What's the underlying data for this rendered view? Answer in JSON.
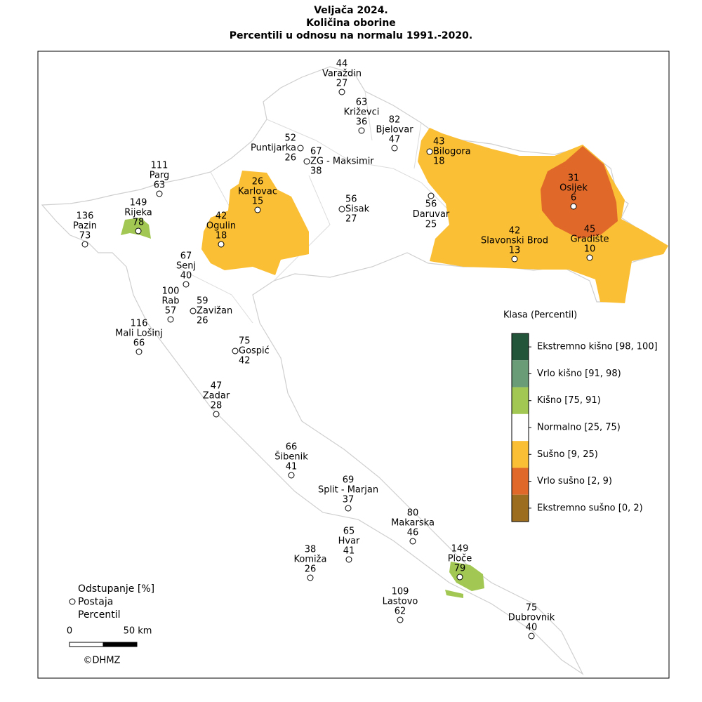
{
  "title": [
    "Veljača 2024.",
    "Količina oborine",
    "Percentili u odnosu na normalu 1991.-2020."
  ],
  "stations": [
    {
      "name": "Varaždin",
      "deviation": 44,
      "percentile": 27
    },
    {
      "name": "Križevci",
      "deviation": 63,
      "percentile": 36
    },
    {
      "name": "Bjelovar",
      "deviation": 82,
      "percentile": 47
    },
    {
      "name": "Puntijarka",
      "deviation": 52,
      "percentile": 26
    },
    {
      "name": "ZG - Maksimir",
      "deviation": 67,
      "percentile": 38
    },
    {
      "name": "Bilogora",
      "deviation": 43,
      "percentile": 18
    },
    {
      "name": "Parg",
      "deviation": 111,
      "percentile": 63
    },
    {
      "name": "Karlovac",
      "deviation": 26,
      "percentile": 15
    },
    {
      "name": "Sisak",
      "deviation": 56,
      "percentile": 27
    },
    {
      "name": "Daruvar",
      "deviation": 56,
      "percentile": 25
    },
    {
      "name": "Osijek",
      "deviation": 31,
      "percentile": 6
    },
    {
      "name": "Rijeka",
      "deviation": 149,
      "percentile": 78
    },
    {
      "name": "Pazin",
      "deviation": 136,
      "percentile": 73
    },
    {
      "name": "Ogulin",
      "deviation": 42,
      "percentile": 18
    },
    {
      "name": "Slavonski Brod",
      "deviation": 42,
      "percentile": 13
    },
    {
      "name": "Gradište",
      "deviation": 45,
      "percentile": 10
    },
    {
      "name": "Senj",
      "deviation": 67,
      "percentile": 40
    },
    {
      "name": "Rab",
      "deviation": 100,
      "percentile": 57
    },
    {
      "name": "Zavižan",
      "deviation": 59,
      "percentile": 26
    },
    {
      "name": "Mali Lošinj",
      "deviation": 116,
      "percentile": 66
    },
    {
      "name": "Gospić",
      "deviation": 75,
      "percentile": 42
    },
    {
      "name": "Zadar",
      "deviation": 47,
      "percentile": 28
    },
    {
      "name": "Šibenik",
      "deviation": 66,
      "percentile": 41
    },
    {
      "name": "Split - Marjan",
      "deviation": 69,
      "percentile": 37
    },
    {
      "name": "Makarska",
      "deviation": 80,
      "percentile": 46
    },
    {
      "name": "Hvar",
      "deviation": 65,
      "percentile": 41
    },
    {
      "name": "Komiža",
      "deviation": 38,
      "percentile": 26
    },
    {
      "name": "Ploče",
      "deviation": 149,
      "percentile": 79
    },
    {
      "name": "Lastovo",
      "deviation": 109,
      "percentile": 62
    },
    {
      "name": "Dubrovnik",
      "deviation": 75,
      "percentile": 40
    }
  ],
  "legend": {
    "title": "Klasa (Percentil)",
    "classes": [
      {
        "label": "Ekstremno kišno [98, 100]",
        "color": "#23553a"
      },
      {
        "label": "Vrlo kišno [91, 98)",
        "color": "#6a9c77"
      },
      {
        "label": "Kišno [75, 91)",
        "color": "#a2c853"
      },
      {
        "label": "Normalno [25, 75)",
        "color": "#ffffff"
      },
      {
        "label": "Sušno [9, 25)",
        "color": "#fbbf36"
      },
      {
        "label": "Vrlo sušno [2, 9)",
        "color": "#e0692a"
      },
      {
        "label": "Ekstremno sušno [0, 2)",
        "color": "#9c6d1f"
      }
    ]
  },
  "key": [
    "Odstupanje [%]",
    "Postaja",
    "Percentil"
  ],
  "scale": {
    "start": "0",
    "end": "50 km"
  },
  "copyright": "©DHMZ"
}
